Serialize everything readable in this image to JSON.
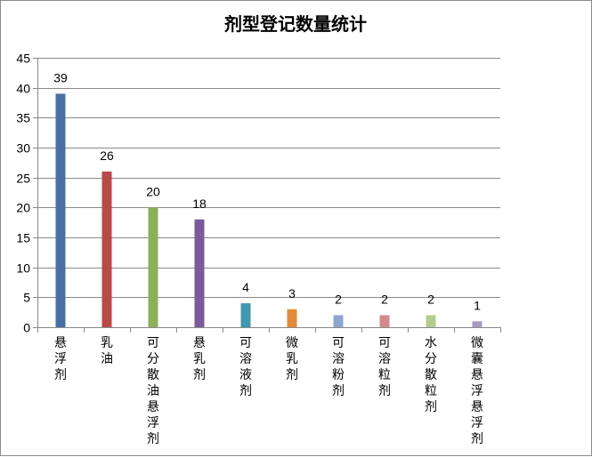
{
  "chart_data": {
    "type": "bar",
    "title": "剂型登记数量统计",
    "categories": [
      "悬浮剂",
      "乳油",
      "可分散油悬浮剂",
      "悬乳剂",
      "可溶液剂",
      "微乳剂",
      "可溶粉剂",
      "可溶粒剂",
      "水分散粒剂",
      "微囊悬浮悬浮剂"
    ],
    "values": [
      39,
      26,
      20,
      18,
      4,
      3,
      2,
      2,
      2,
      1
    ],
    "colors": [
      "#4a6fa5",
      "#b94a48",
      "#8caf5a",
      "#7a5a9a",
      "#3f97b0",
      "#e58a3a",
      "#8ea6cf",
      "#d48a8a",
      "#b5cd8c",
      "#a89ac3"
    ],
    "ylim": [
      0,
      45
    ],
    "yticks": [
      0,
      5,
      10,
      15,
      20,
      25,
      30,
      35,
      40,
      45
    ],
    "grid": true,
    "legend": "none",
    "data_labels": true
  }
}
